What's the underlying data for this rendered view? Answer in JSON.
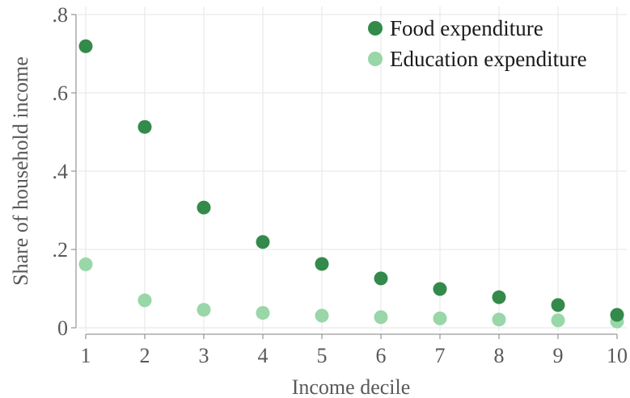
{
  "chart_data": {
    "type": "scatter",
    "xlabel": "Income decile",
    "ylabel": "Share of household income",
    "x": [
      1,
      2,
      3,
      4,
      5,
      6,
      7,
      8,
      9,
      10
    ],
    "x_ticks": [
      "1",
      "2",
      "3",
      "4",
      "5",
      "6",
      "7",
      "8",
      "9",
      "10"
    ],
    "y_ticks": [
      {
        "value": 0,
        "label": "0"
      },
      {
        "value": 0.2,
        "label": ".2"
      },
      {
        "value": 0.4,
        "label": ".4"
      },
      {
        "value": 0.6,
        "label": ".6"
      },
      {
        "value": 0.8,
        "label": ".8"
      }
    ],
    "xlim": [
      1,
      10
    ],
    "ylim": [
      0,
      0.8
    ],
    "grid": true,
    "legend_position": "top-right",
    "series": [
      {
        "name": "Food expenditure",
        "color": "#338a4a",
        "values": [
          0.719,
          0.513,
          0.307,
          0.219,
          0.163,
          0.126,
          0.099,
          0.078,
          0.058,
          0.033
        ]
      },
      {
        "name": "Education expenditure",
        "color": "#99d6a8",
        "values": [
          0.162,
          0.07,
          0.046,
          0.038,
          0.031,
          0.027,
          0.024,
          0.021,
          0.019,
          0.016
        ]
      }
    ]
  }
}
